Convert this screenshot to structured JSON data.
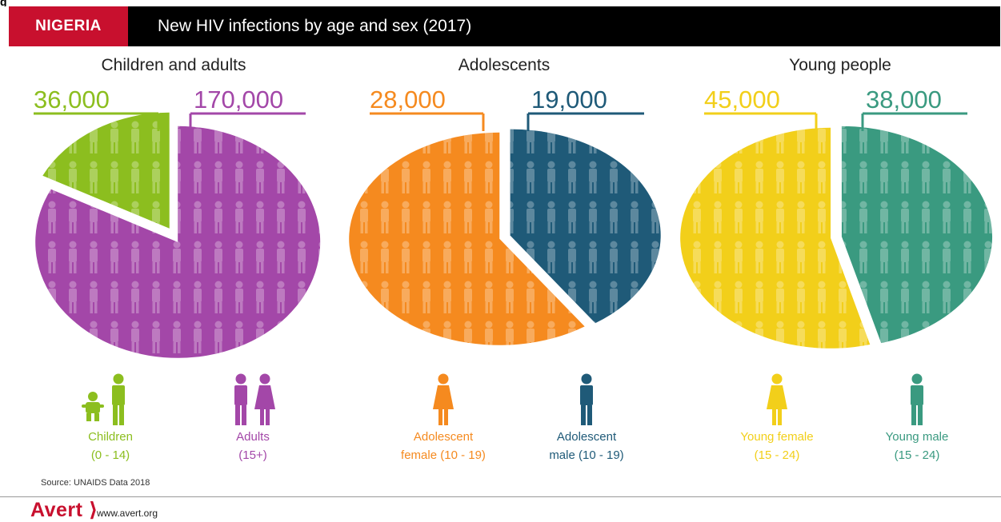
{
  "header": {
    "top_fragment": "g",
    "country": "NIGERIA",
    "title": "New HIV infections by age and sex (2017)"
  },
  "colors": {
    "header_bg": "#000000",
    "badge": "#c8102e",
    "children": "#8cbe1f",
    "adults": "#a347a8",
    "adolescent_female": "#f58a1f",
    "adolescent_male": "#1f5a78",
    "young_female": "#f2cf1a",
    "young_male": "#3a9a80"
  },
  "chart_data": [
    {
      "type": "pie",
      "title": "Children and adults",
      "slices": [
        {
          "name": "Children",
          "sublabel": "(0 - 14)",
          "value": 36000,
          "value_label": "36,000",
          "color": "#8cbe1f",
          "icon": "child-and-man-icon"
        },
        {
          "name": "Adults",
          "sublabel": "(15+)",
          "value": 170000,
          "value_label": "170,000",
          "color": "#a347a8",
          "icon": "man-and-woman-icon"
        }
      ]
    },
    {
      "type": "pie",
      "title": "Adolescents",
      "slices": [
        {
          "name": "Adolescent",
          "sublabel": "female (10 - 19)",
          "value": 28000,
          "value_label": "28,000",
          "color": "#f58a1f",
          "icon": "woman-icon"
        },
        {
          "name": "Adolescent",
          "sublabel": "male (10 - 19)",
          "value": 19000,
          "value_label": "19,000",
          "color": "#1f5a78",
          "icon": "man-icon"
        }
      ]
    },
    {
      "type": "pie",
      "title": "Young people",
      "slices": [
        {
          "name": "Young female",
          "sublabel": "(15 - 24)",
          "value": 45000,
          "value_label": "45,000",
          "color": "#f2cf1a",
          "icon": "woman-icon"
        },
        {
          "name": "Young male",
          "sublabel": "(15 - 24)",
          "value": 38000,
          "value_label": "38,000",
          "color": "#3a9a80",
          "icon": "man-icon"
        }
      ]
    }
  ],
  "footer": {
    "source": "Source: UNAIDS Data 2018",
    "brand": "Avert ⟩",
    "url": "www.avert.org"
  }
}
